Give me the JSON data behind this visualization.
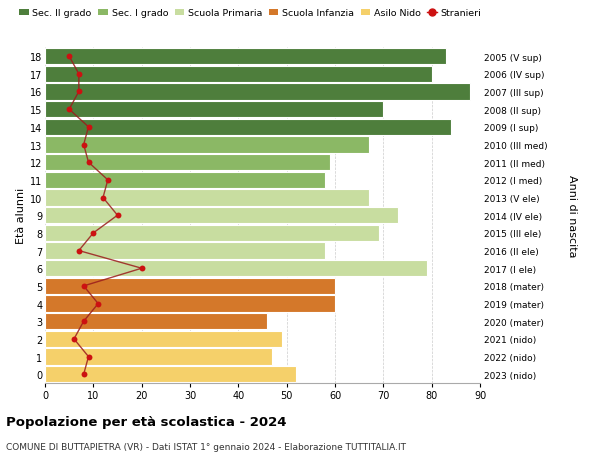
{
  "ages": [
    0,
    1,
    2,
    3,
    4,
    5,
    6,
    7,
    8,
    9,
    10,
    11,
    12,
    13,
    14,
    15,
    16,
    17,
    18
  ],
  "bar_values": [
    52,
    47,
    49,
    46,
    60,
    60,
    79,
    58,
    69,
    73,
    67,
    58,
    59,
    67,
    84,
    70,
    88,
    80,
    83
  ],
  "right_labels": [
    "2023 (nido)",
    "2022 (nido)",
    "2021 (nido)",
    "2020 (mater)",
    "2019 (mater)",
    "2018 (mater)",
    "2017 (I ele)",
    "2016 (II ele)",
    "2015 (III ele)",
    "2014 (IV ele)",
    "2013 (V ele)",
    "2012 (I med)",
    "2011 (II med)",
    "2010 (III med)",
    "2009 (I sup)",
    "2008 (II sup)",
    "2007 (III sup)",
    "2006 (IV sup)",
    "2005 (V sup)"
  ],
  "bar_colors": [
    "#f5d06a",
    "#f5d06a",
    "#f5d06a",
    "#d4782a",
    "#d4782a",
    "#d4782a",
    "#c8dda0",
    "#c8dda0",
    "#c8dda0",
    "#c8dda0",
    "#c8dda0",
    "#8bb865",
    "#8bb865",
    "#8bb865",
    "#4e7e3c",
    "#4e7e3c",
    "#4e7e3c",
    "#4e7e3c",
    "#4e7e3c"
  ],
  "stranieri_values": [
    8,
    9,
    6,
    8,
    11,
    8,
    20,
    7,
    10,
    15,
    12,
    13,
    9,
    8,
    9,
    5,
    7,
    7,
    5
  ],
  "legend_labels": [
    "Sec. II grado",
    "Sec. I grado",
    "Scuola Primaria",
    "Scuola Infanzia",
    "Asilo Nido",
    "Stranieri"
  ],
  "legend_colors": [
    "#4e7e3c",
    "#8bb865",
    "#c8dda0",
    "#d4782a",
    "#f5d06a",
    "#cc1111"
  ],
  "title": "Popolazione per età scolastica - 2024",
  "subtitle": "COMUNE DI BUTTAPIETRA (VR) - Dati ISTAT 1° gennaio 2024 - Elaborazione TUTTITALIA.IT",
  "ylabel_left": "Età alunni",
  "ylabel_right": "Anni di nascita",
  "xlim": [
    0,
    90
  ],
  "xticks": [
    0,
    10,
    20,
    30,
    40,
    50,
    60,
    70,
    80,
    90
  ],
  "background_color": "#ffffff",
  "bar_edge_color": "#ffffff",
  "grid_color": "#cccccc"
}
